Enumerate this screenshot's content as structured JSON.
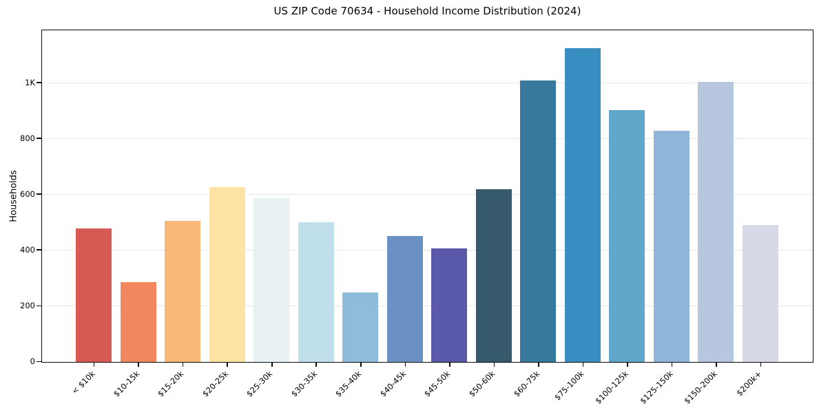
{
  "chart_data": {
    "type": "bar",
    "title": "US ZIP Code 70634 - Household Income Distribution (2024)",
    "xlabel": "",
    "ylabel": "Households",
    "categories": [
      "< $10k",
      "$10-15k",
      "$15-20k",
      "$20-25k",
      "$25-30k",
      "$30-35k",
      "$35-40k",
      "$40-45k",
      "$45-50k",
      "$50-60k",
      "$60-75k",
      "$75-100k",
      "$100-125k",
      "$125-150k",
      "$150-200k",
      "$200k+"
    ],
    "values": [
      478,
      287,
      505,
      627,
      588,
      502,
      250,
      451,
      407,
      620,
      1008,
      1125,
      904,
      828,
      1003,
      490
    ],
    "bar_colors": [
      "#d65953",
      "#f2875f",
      "#fab878",
      "#fde3a3",
      "#e7f1f3",
      "#bfdfec",
      "#90bcdc",
      "#6b90c4",
      "#5a58a9",
      "#365a6b",
      "#36799c",
      "#388ec1",
      "#61a6cb",
      "#8fb6d8",
      "#b7c7df",
      "#d8d9e7"
    ],
    "ylim": [
      0,
      1186
    ],
    "yticks": {
      "values": [
        0,
        200,
        400,
        600,
        800,
        1000
      ],
      "labels": [
        "0",
        "200",
        "400",
        "600",
        "800",
        "1K"
      ]
    },
    "grid": "horizontal",
    "gridline_color": "#e7e7e7",
    "legend_position": "none",
    "x_tick_rotation_deg": 45
  }
}
